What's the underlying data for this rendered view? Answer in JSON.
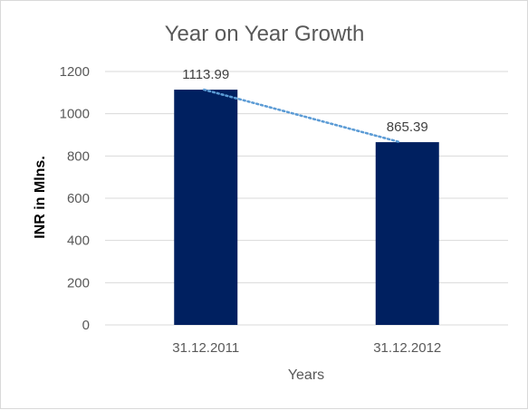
{
  "chart_data": {
    "type": "bar",
    "title": "Year on Year Growth",
    "xlabel": "Years",
    "ylabel": "INR in Mlns.",
    "categories": [
      "31.12.2011",
      "31.12.2012"
    ],
    "values": [
      1113.99,
      865.39
    ],
    "data_labels": [
      "1113.99",
      "865.39"
    ],
    "ylim": [
      0,
      1200
    ],
    "yticks": [
      0,
      200,
      400,
      600,
      800,
      1000,
      1200
    ],
    "grid": true,
    "legend": "none",
    "trendline": "linear, dotted",
    "colors": {
      "bar": "#002060",
      "trendline": "#5b9bd5",
      "grid": "#d9d9d9"
    }
  }
}
